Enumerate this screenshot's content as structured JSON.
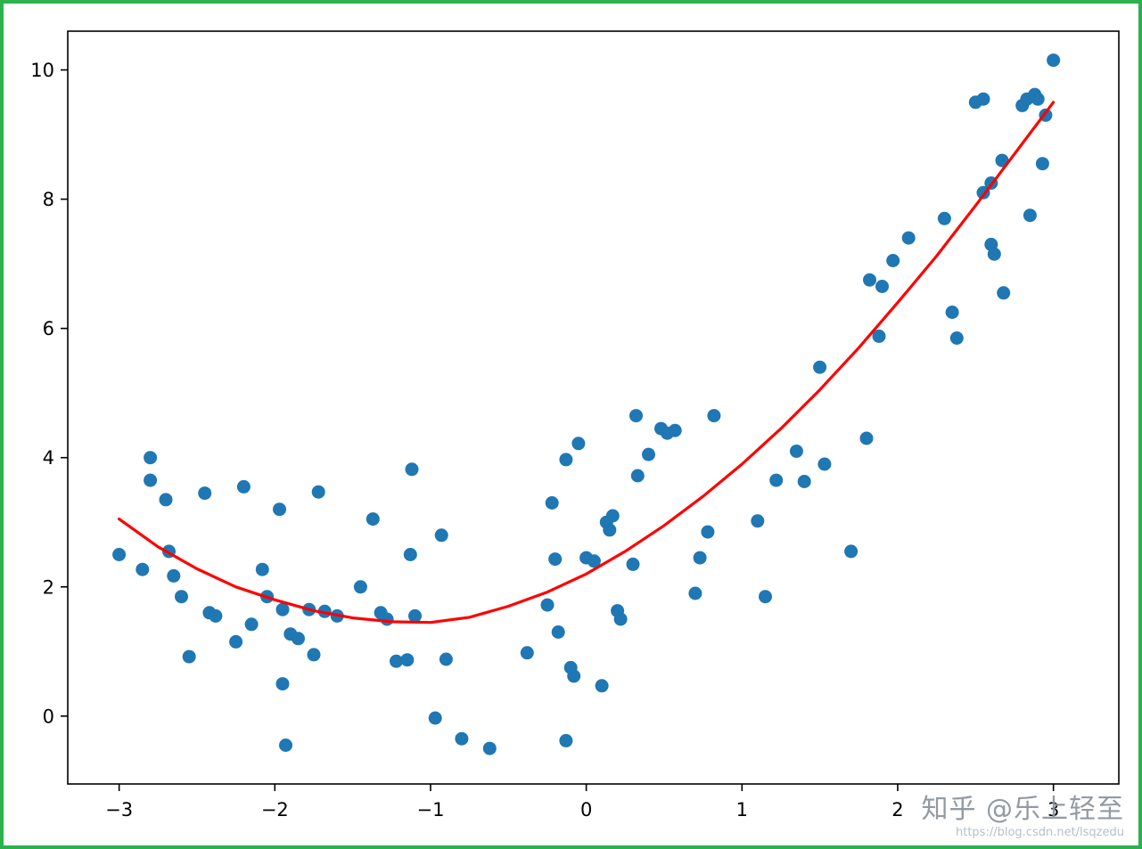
{
  "figure": {
    "background": "#ffffff",
    "frame_color": "#2bb24c"
  },
  "watermark": {
    "brand": "知乎 @乐上轻至",
    "url": "https://blog.csdn.net/lsqzedu"
  },
  "chart_data": {
    "type": "scatter",
    "title": "",
    "xlabel": "",
    "ylabel": "",
    "xlim": [
      -3.33,
      3.42
    ],
    "ylim": [
      -1.05,
      10.6
    ],
    "x_ticks": [
      -3,
      -2,
      -1,
      0,
      1,
      2,
      3
    ],
    "y_ticks": [
      0,
      2,
      4,
      6,
      8,
      10
    ],
    "grid": false,
    "legend": "none",
    "axis_color": "#000000",
    "series": [
      {
        "name": "data-points",
        "type": "scatter",
        "color": "#1f77b4",
        "marker_size": 7.5,
        "points": [
          [
            -3.0,
            2.5
          ],
          [
            -2.85,
            2.27
          ],
          [
            -2.8,
            4.0
          ],
          [
            -2.8,
            3.65
          ],
          [
            -2.7,
            3.35
          ],
          [
            -2.68,
            2.55
          ],
          [
            -2.65,
            2.17
          ],
          [
            -2.6,
            1.85
          ],
          [
            -2.55,
            0.92
          ],
          [
            -2.45,
            3.45
          ],
          [
            -2.42,
            1.6
          ],
          [
            -2.38,
            1.55
          ],
          [
            -2.25,
            1.15
          ],
          [
            -2.2,
            3.55
          ],
          [
            -2.15,
            1.42
          ],
          [
            -2.08,
            2.27
          ],
          [
            -2.05,
            1.85
          ],
          [
            -1.97,
            3.2
          ],
          [
            -1.95,
            1.65
          ],
          [
            -1.95,
            0.5
          ],
          [
            -1.93,
            -0.45
          ],
          [
            -1.9,
            1.27
          ],
          [
            -1.85,
            1.2
          ],
          [
            -1.78,
            1.65
          ],
          [
            -1.75,
            0.95
          ],
          [
            -1.72,
            3.47
          ],
          [
            -1.68,
            1.62
          ],
          [
            -1.6,
            1.55
          ],
          [
            -1.45,
            2.0
          ],
          [
            -1.37,
            3.05
          ],
          [
            -1.32,
            1.6
          ],
          [
            -1.28,
            1.5
          ],
          [
            -1.22,
            0.85
          ],
          [
            -1.15,
            0.87
          ],
          [
            -1.13,
            2.5
          ],
          [
            -1.12,
            3.82
          ],
          [
            -1.1,
            1.55
          ],
          [
            -0.97,
            -0.03
          ],
          [
            -0.93,
            2.8
          ],
          [
            -0.9,
            0.88
          ],
          [
            -0.8,
            -0.35
          ],
          [
            -0.62,
            -0.5
          ],
          [
            -0.38,
            0.98
          ],
          [
            -0.25,
            1.72
          ],
          [
            -0.22,
            3.3
          ],
          [
            -0.2,
            2.43
          ],
          [
            -0.18,
            1.3
          ],
          [
            -0.13,
            3.97
          ],
          [
            -0.13,
            -0.38
          ],
          [
            -0.1,
            0.75
          ],
          [
            -0.08,
            0.62
          ],
          [
            -0.05,
            4.22
          ],
          [
            0.0,
            2.45
          ],
          [
            0.05,
            2.4
          ],
          [
            0.1,
            0.47
          ],
          [
            0.13,
            3.0
          ],
          [
            0.15,
            2.88
          ],
          [
            0.17,
            3.1
          ],
          [
            0.2,
            1.63
          ],
          [
            0.22,
            1.5
          ],
          [
            0.3,
            2.35
          ],
          [
            0.32,
            4.65
          ],
          [
            0.33,
            3.72
          ],
          [
            0.4,
            4.05
          ],
          [
            0.48,
            4.45
          ],
          [
            0.52,
            4.38
          ],
          [
            0.57,
            4.42
          ],
          [
            0.7,
            1.9
          ],
          [
            0.73,
            2.45
          ],
          [
            0.78,
            2.85
          ],
          [
            0.82,
            4.65
          ],
          [
            1.1,
            3.02
          ],
          [
            1.15,
            1.85
          ],
          [
            1.22,
            3.65
          ],
          [
            1.35,
            4.1
          ],
          [
            1.4,
            3.63
          ],
          [
            1.5,
            5.4
          ],
          [
            1.53,
            3.9
          ],
          [
            1.7,
            2.55
          ],
          [
            1.8,
            4.3
          ],
          [
            1.82,
            6.75
          ],
          [
            1.88,
            5.88
          ],
          [
            1.9,
            6.65
          ],
          [
            1.97,
            7.05
          ],
          [
            2.07,
            7.4
          ],
          [
            2.3,
            7.7
          ],
          [
            2.35,
            6.25
          ],
          [
            2.38,
            5.85
          ],
          [
            2.5,
            9.5
          ],
          [
            2.55,
            9.55
          ],
          [
            2.55,
            8.1
          ],
          [
            2.6,
            8.25
          ],
          [
            2.6,
            7.3
          ],
          [
            2.62,
            7.15
          ],
          [
            2.67,
            8.6
          ],
          [
            2.68,
            6.55
          ],
          [
            2.8,
            9.45
          ],
          [
            2.83,
            9.55
          ],
          [
            2.85,
            7.75
          ],
          [
            2.88,
            9.62
          ],
          [
            2.9,
            9.55
          ],
          [
            2.93,
            8.55
          ],
          [
            2.95,
            9.3
          ],
          [
            3.0,
            10.15
          ]
        ]
      },
      {
        "name": "fitted-curve",
        "type": "line",
        "color": "#ff0000",
        "width": 3.2,
        "points": [
          [
            -3.0,
            3.05
          ],
          [
            -2.75,
            2.62
          ],
          [
            -2.5,
            2.28
          ],
          [
            -2.25,
            2.0
          ],
          [
            -2.0,
            1.8
          ],
          [
            -1.75,
            1.63
          ],
          [
            -1.5,
            1.52
          ],
          [
            -1.25,
            1.46
          ],
          [
            -1.0,
            1.45
          ],
          [
            -0.75,
            1.53
          ],
          [
            -0.5,
            1.7
          ],
          [
            -0.25,
            1.92
          ],
          [
            0.0,
            2.2
          ],
          [
            0.25,
            2.55
          ],
          [
            0.5,
            2.95
          ],
          [
            0.75,
            3.4
          ],
          [
            1.0,
            3.9
          ],
          [
            1.25,
            4.45
          ],
          [
            1.5,
            5.05
          ],
          [
            1.75,
            5.7
          ],
          [
            2.0,
            6.4
          ],
          [
            2.25,
            7.12
          ],
          [
            2.5,
            7.9
          ],
          [
            2.75,
            8.7
          ],
          [
            3.0,
            9.5
          ]
        ]
      }
    ]
  }
}
